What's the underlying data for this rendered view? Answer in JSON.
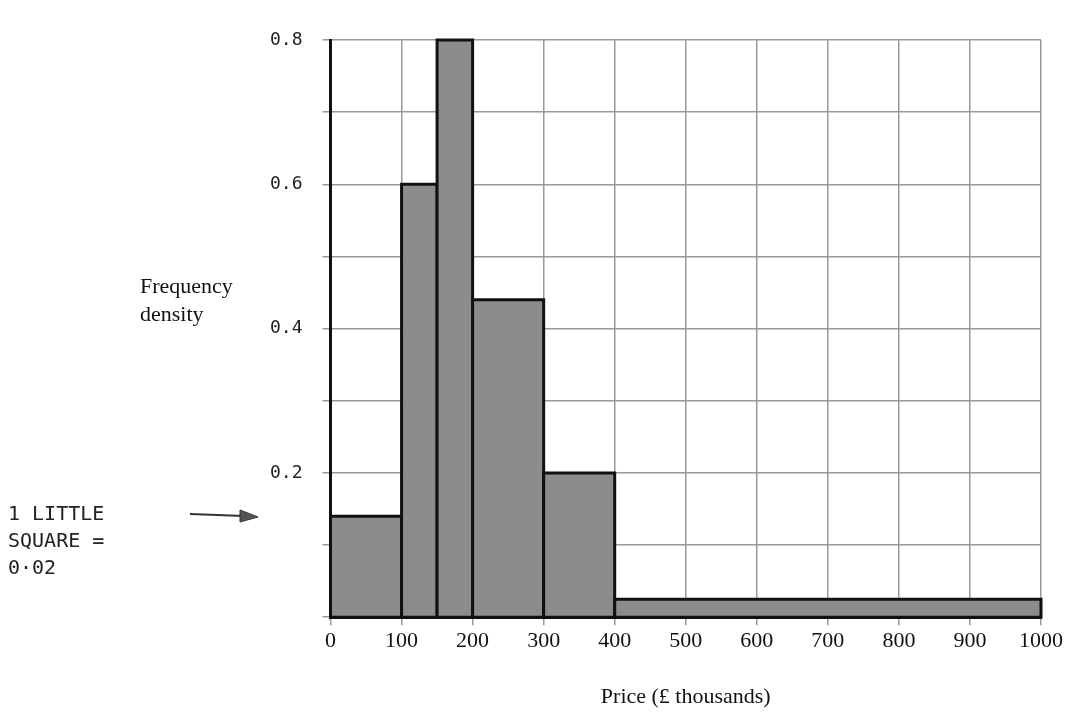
{
  "chart_data": {
    "type": "histogram",
    "xlabel": "Price (£ thousands)",
    "ylabel": "Frequency density",
    "bins": [
      0,
      100,
      150,
      200,
      300,
      400,
      1000
    ],
    "values": [
      0.14,
      0.6,
      0.8,
      0.44,
      0.2,
      0.025
    ],
    "color": "#8c8c8c",
    "xlim": [
      0,
      1000
    ],
    "xticks": [
      0,
      100,
      200,
      300,
      400,
      500,
      600,
      700,
      800,
      900,
      1000
    ],
    "ylim": [
      0,
      0.8
    ],
    "yticks": [
      {
        "value": 0,
        "label": null
      },
      {
        "value": 0.1,
        "label": null
      },
      0.2,
      {
        "value": 0.3,
        "label": null
      },
      0.4,
      {
        "value": 0.5,
        "label": null
      },
      0.6,
      {
        "value": 0.7,
        "label": null
      },
      0.8
    ],
    "grid": true,
    "annotations": [
      "1 LITTLE SQUARE = 0·02"
    ]
  }
}
